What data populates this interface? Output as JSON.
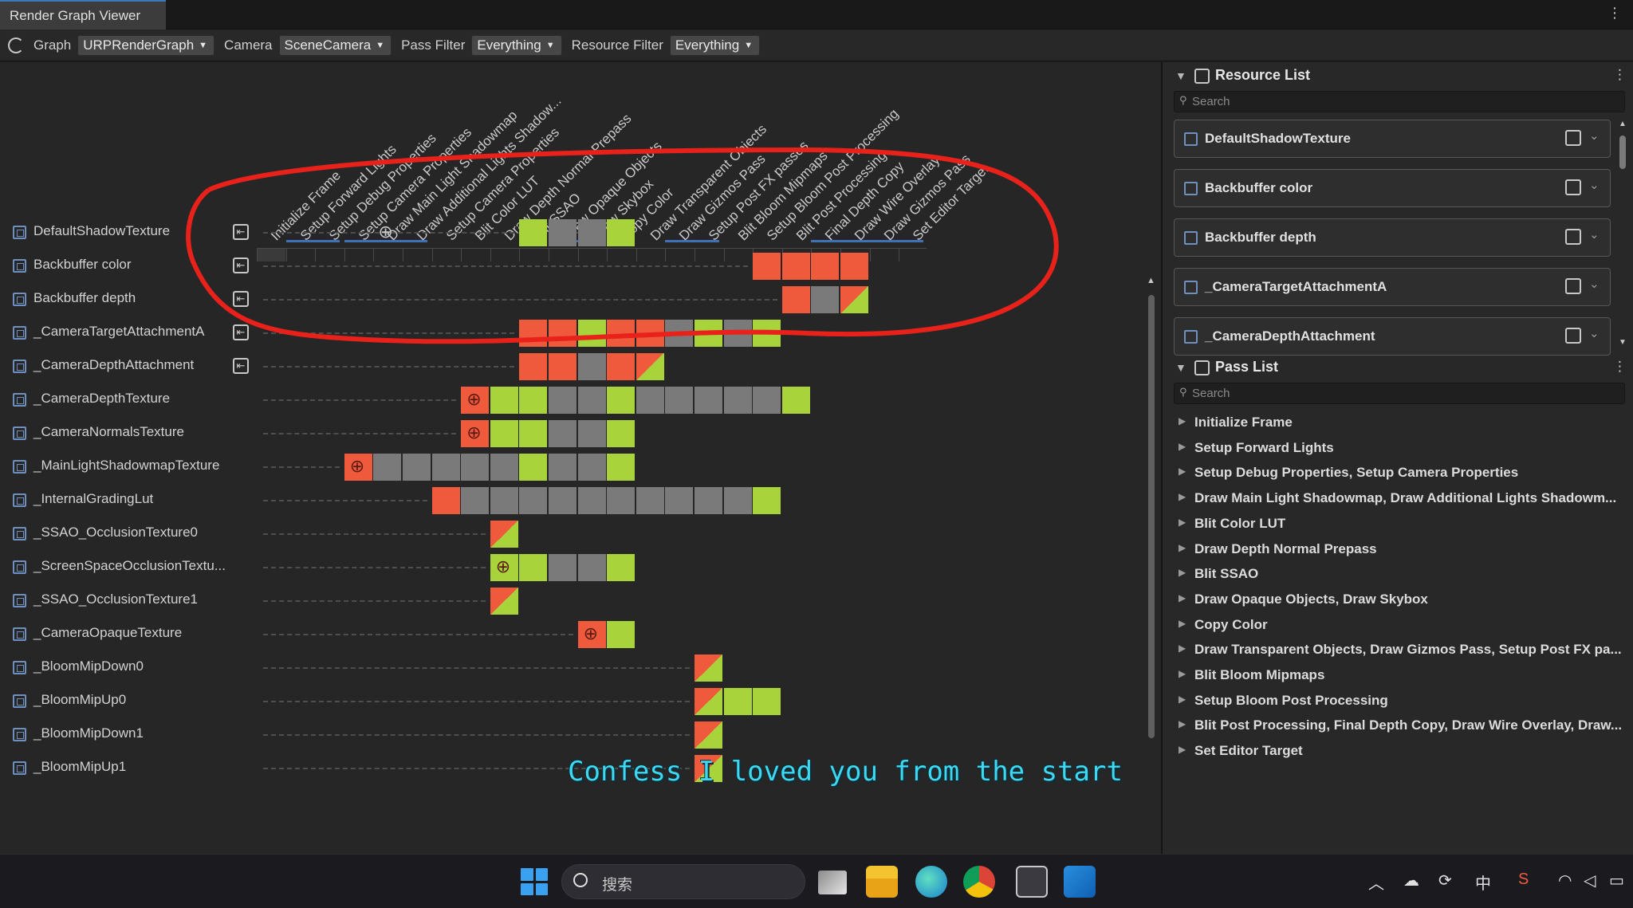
{
  "window": {
    "title": "Render Graph Viewer"
  },
  "toolbar": {
    "graph_label": "Graph",
    "graph_value": "URPRenderGraph",
    "camera_label": "Camera",
    "camera_value": "SceneCamera",
    "pass_filter_label": "Pass Filter",
    "pass_filter_value": "Everything",
    "resource_filter_label": "Resource Filter",
    "resource_filter_value": "Everything"
  },
  "passes": [
    "Initialize Frame",
    "Setup Forward Lights",
    "Setup Debug Properties",
    "Setup Camera Properties",
    "Draw Main Light Shadowmap",
    "Draw Additional Lights Shadow...",
    "Setup Camera Properties",
    "Blit Color LUT",
    "Draw Depth Normal Prepass",
    "Blit SSAO",
    "Draw Opaque Objects",
    "Draw Skybox",
    "Copy Color",
    "Draw Transparent Objects",
    "Draw Gizmos Pass",
    "Setup Post FX passes",
    "Blit Bloom Mipmaps",
    "Setup Bloom Post Processing",
    "Blit Post Processing",
    "Final Depth Copy",
    "Draw Wire Overlay",
    "Draw Gizmos Pass",
    "Set Editor Target"
  ],
  "resources": [
    {
      "name": "DefaultShadowTexture",
      "imported": true,
      "dash_to": 13,
      "globe_plain": 5,
      "cells": [
        [
          10,
          "g"
        ],
        [
          11,
          "x"
        ],
        [
          12,
          "x"
        ],
        [
          13,
          "g"
        ]
      ]
    },
    {
      "name": "Backbuffer color",
      "imported": true,
      "dash_to": 18,
      "cells": [
        [
          18,
          "r"
        ],
        [
          19,
          "r"
        ],
        [
          20,
          "r"
        ],
        [
          21,
          "r"
        ]
      ]
    },
    {
      "name": "Backbuffer depth",
      "imported": true,
      "dash_to": 19,
      "cells": [
        [
          19,
          "r"
        ],
        [
          20,
          "x"
        ],
        [
          21,
          "s"
        ]
      ]
    },
    {
      "name": "_CameraTargetAttachmentA",
      "imported": true,
      "dash_to": 10,
      "cells": [
        [
          10,
          "r"
        ],
        [
          11,
          "r"
        ],
        [
          12,
          "g"
        ],
        [
          13,
          "r"
        ],
        [
          14,
          "r"
        ],
        [
          15,
          "x"
        ],
        [
          16,
          "g"
        ],
        [
          17,
          "x"
        ],
        [
          18,
          "g"
        ]
      ]
    },
    {
      "name": "_CameraDepthAttachment",
      "imported": true,
      "dash_to": 10,
      "cells": [
        [
          10,
          "r"
        ],
        [
          11,
          "r"
        ],
        [
          12,
          "x"
        ],
        [
          13,
          "r"
        ],
        [
          14,
          "s"
        ]
      ]
    },
    {
      "name": "_CameraDepthTexture",
      "imported": false,
      "dash_to": 8,
      "cells": [
        [
          8,
          "o"
        ],
        [
          9,
          "g"
        ],
        [
          10,
          "g"
        ],
        [
          11,
          "x"
        ],
        [
          12,
          "x"
        ],
        [
          13,
          "g"
        ],
        [
          14,
          "x"
        ],
        [
          15,
          "x"
        ],
        [
          16,
          "x"
        ],
        [
          17,
          "x"
        ],
        [
          18,
          "x"
        ],
        [
          19,
          "g"
        ]
      ]
    },
    {
      "name": "_CameraNormalsTexture",
      "imported": false,
      "dash_to": 8,
      "cells": [
        [
          8,
          "o"
        ],
        [
          9,
          "g"
        ],
        [
          10,
          "g"
        ],
        [
          11,
          "x"
        ],
        [
          12,
          "x"
        ],
        [
          13,
          "g"
        ]
      ]
    },
    {
      "name": "_MainLightShadowmapTexture",
      "imported": false,
      "dash_to": 4,
      "cells": [
        [
          4,
          "o"
        ],
        [
          5,
          "x"
        ],
        [
          6,
          "x"
        ],
        [
          7,
          "x"
        ],
        [
          8,
          "x"
        ],
        [
          9,
          "x"
        ],
        [
          10,
          "g"
        ],
        [
          11,
          "x"
        ],
        [
          12,
          "x"
        ],
        [
          13,
          "g"
        ]
      ]
    },
    {
      "name": "_InternalGradingLut",
      "imported": false,
      "dash_to": 7,
      "cells": [
        [
          7,
          "r"
        ],
        [
          8,
          "x"
        ],
        [
          9,
          "x"
        ],
        [
          10,
          "x"
        ],
        [
          11,
          "x"
        ],
        [
          12,
          "x"
        ],
        [
          13,
          "x"
        ],
        [
          14,
          "x"
        ],
        [
          15,
          "x"
        ],
        [
          16,
          "x"
        ],
        [
          17,
          "x"
        ],
        [
          18,
          "g"
        ]
      ]
    },
    {
      "name": "_SSAO_OcclusionTexture0",
      "imported": false,
      "dash_to": 9,
      "cells": [
        [
          9,
          "s"
        ]
      ]
    },
    {
      "name": "_ScreenSpaceOcclusionTextu...",
      "imported": false,
      "dash_to": 9,
      "cells": [
        [
          9,
          "q"
        ],
        [
          10,
          "g"
        ],
        [
          11,
          "x"
        ],
        [
          12,
          "x"
        ],
        [
          13,
          "g"
        ]
      ]
    },
    {
      "name": "_SSAO_OcclusionTexture1",
      "imported": false,
      "dash_to": 9,
      "cells": [
        [
          9,
          "s"
        ]
      ]
    },
    {
      "name": "_CameraOpaqueTexture",
      "imported": false,
      "dash_to": 12,
      "cells": [
        [
          12,
          "o"
        ],
        [
          13,
          "g"
        ]
      ]
    },
    {
      "name": "_BloomMipDown0",
      "imported": false,
      "dash_to": 16,
      "cells": [
        [
          16,
          "s"
        ]
      ]
    },
    {
      "name": "_BloomMipUp0",
      "imported": false,
      "dash_to": 16,
      "cells": [
        [
          16,
          "s"
        ],
        [
          17,
          "g"
        ],
        [
          18,
          "g"
        ]
      ]
    },
    {
      "name": "_BloomMipDown1",
      "imported": false,
      "dash_to": 16,
      "cells": [
        [
          16,
          "s"
        ]
      ]
    },
    {
      "name": "_BloomMipUp1",
      "imported": false,
      "dash_to": 16,
      "cells": [
        [
          16,
          "s"
        ]
      ]
    }
  ],
  "subtitle": "Confess I loved you from the start",
  "resource_list": {
    "title": "Resource List",
    "search_placeholder": "Search",
    "items": [
      "DefaultShadowTexture",
      "Backbuffer color",
      "Backbuffer depth",
      "_CameraTargetAttachmentA",
      "_CameraDepthAttachment"
    ]
  },
  "pass_list": {
    "title": "Pass List",
    "search_placeholder": "Search",
    "items": [
      "Initialize Frame",
      "Setup Forward Lights",
      "Setup Debug Properties, Setup Camera Properties",
      "Draw Main Light Shadowmap, Draw Additional Lights Shadowm...",
      "Blit Color LUT",
      "Draw Depth Normal Prepass",
      "Blit SSAO",
      "Draw Opaque Objects, Draw Skybox",
      "Copy Color",
      "Draw Transparent Objects, Draw Gizmos Pass, Setup Post FX pa...",
      "Blit Bloom Mipmaps",
      "Setup Bloom Post Processing",
      "Blit Post Processing, Final Depth Copy, Draw Wire Overlay, Draw...",
      "Set Editor Target"
    ]
  },
  "taskbar": {
    "search_text": "搜索",
    "ime": "中"
  },
  "colors": {
    "accent": "#3f70b8",
    "write": "#f05a3c",
    "read": "#a8d33b",
    "unused": "#7a7a7a",
    "annotation": "#e8221a",
    "subtitle": "#3fd8f0"
  }
}
